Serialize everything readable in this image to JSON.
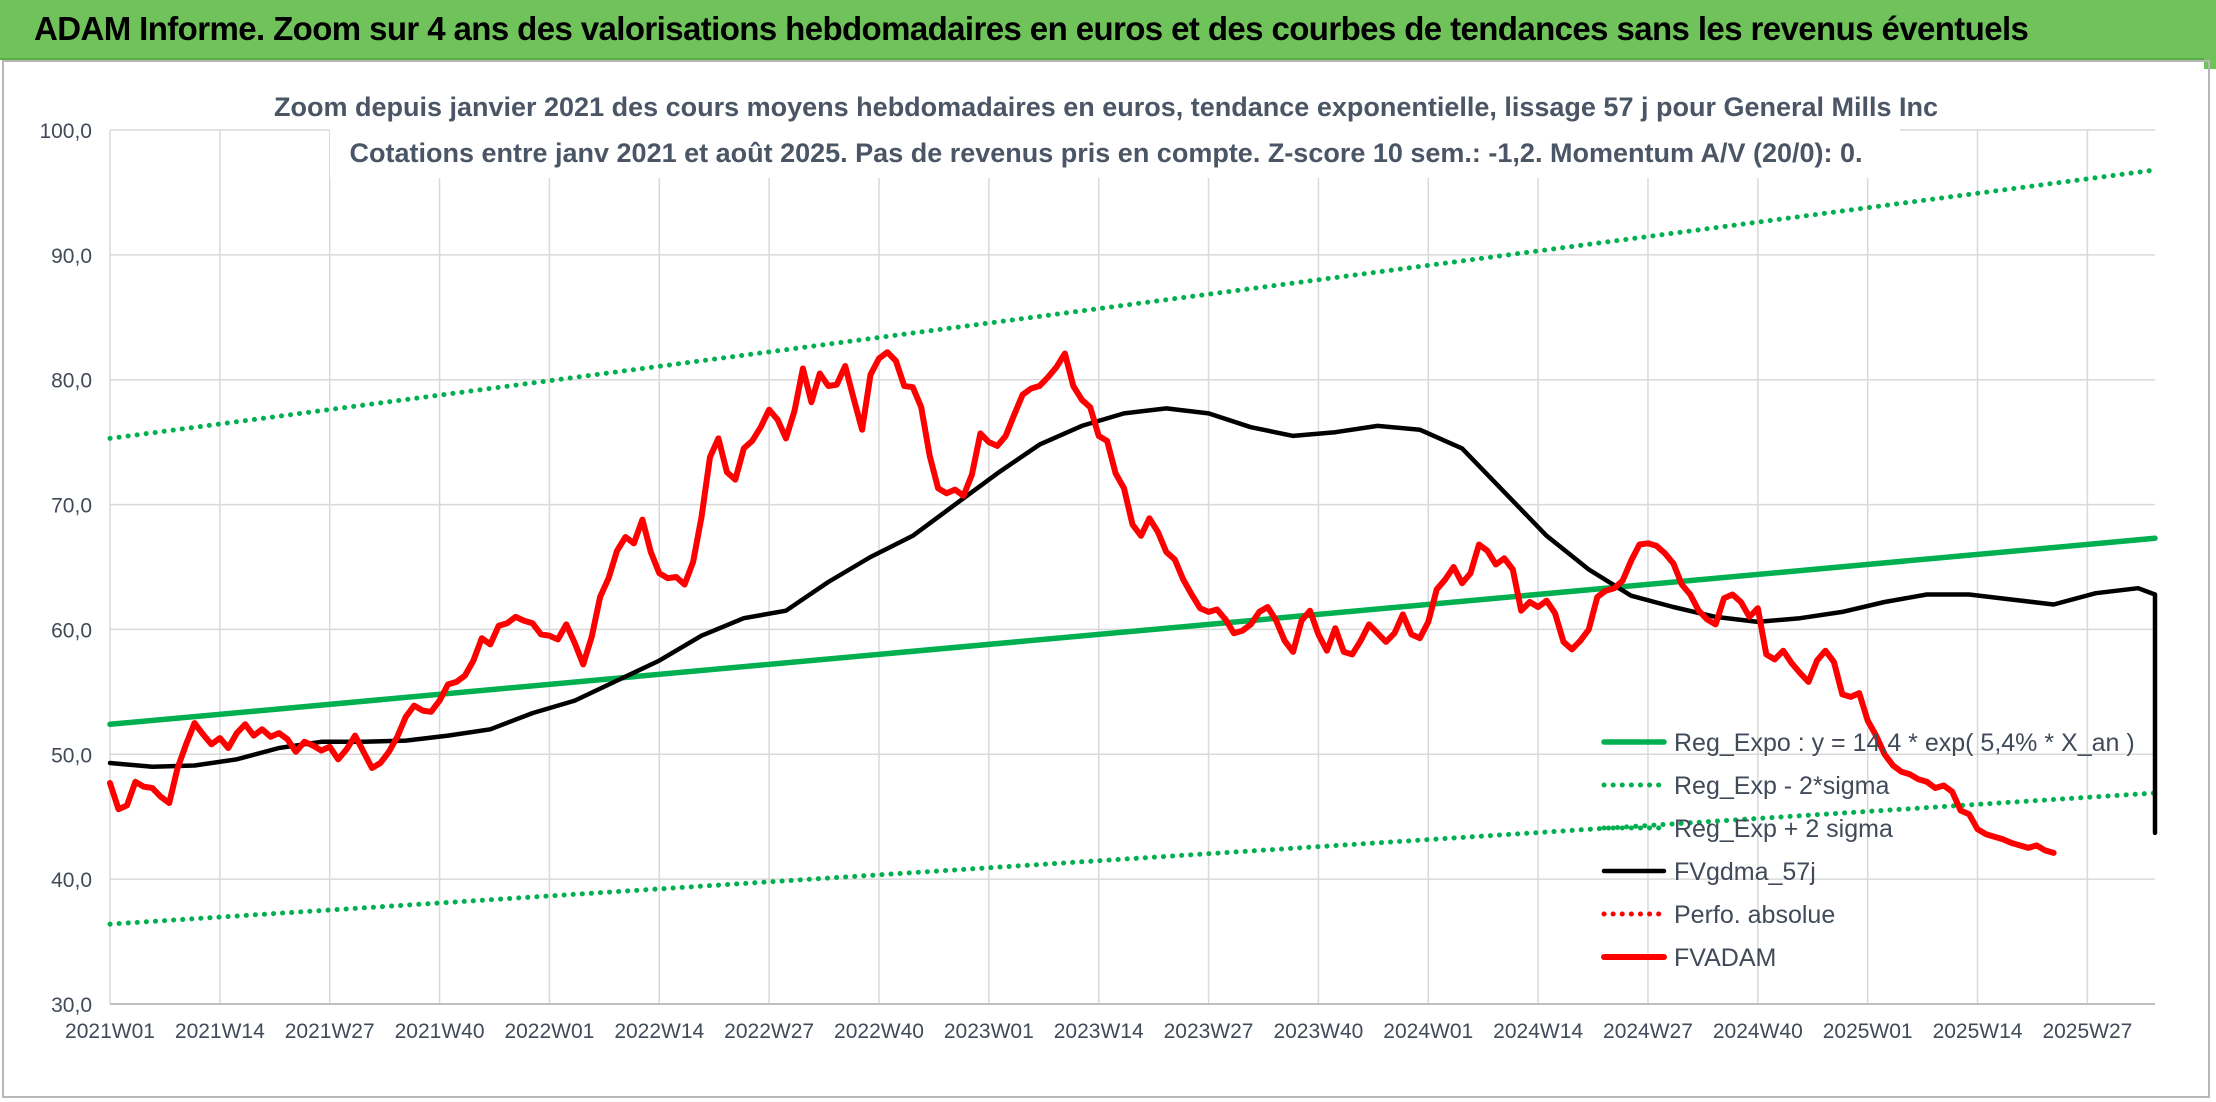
{
  "banner": {
    "title": "ADAM Informe. Zoom sur 4 ans des valorisations hebdomadaires en euros et des courbes de tendances sans les revenus éventuels"
  },
  "colors": {
    "banner": "#6fc35a",
    "regression": "#00b050",
    "fvadam": "#ff0000",
    "fvgdma": "#000000",
    "grid": "#d9d9d9",
    "text": "#404a58"
  },
  "chart_data": {
    "type": "line",
    "title": "Zoom depuis janvier 2021 des cours moyens hebdomadaires en euros, tendance exponentielle, lissage 57 j pour General Mills Inc",
    "subtitle": "Cotations entre janv 2021 et août 2025. Pas de revenus pris en compte. Z-score 10 sem.: -1,2. Momentum A/V (20/0): 0.",
    "ylim": [
      30,
      100
    ],
    "yticks": [
      "30,0",
      "40,0",
      "50,0",
      "60,0",
      "70,0",
      "80,0",
      "90,0",
      "100,0"
    ],
    "xticks": [
      "2021W01",
      "2021W14",
      "2021W27",
      "2021W40",
      "2022W01",
      "2022W14",
      "2022W27",
      "2022W40",
      "2023W01",
      "2023W14",
      "2023W27",
      "2023W40",
      "2024W01",
      "2024W14",
      "2024W27",
      "2024W40",
      "2025W01",
      "2025W14",
      "2025W27"
    ],
    "n_weeks": 243,
    "grid": true,
    "legend_position": "bottom-right",
    "series": [
      {
        "name": "Reg_Expo : y = 14,4 * exp( 5,4% *  X_an )",
        "style": "solid-thick",
        "color": "#00b050",
        "points": [
          [
            0,
            52.4
          ],
          [
            242,
            67.3
          ]
        ]
      },
      {
        "name": "Reg_Exp - 2*sigma",
        "style": "dotted",
        "color": "#00b050",
        "points": [
          [
            0,
            36.4
          ],
          [
            242,
            46.9
          ]
        ]
      },
      {
        "name": "Reg_Exp + 2 sigma",
        "style": "dotted",
        "color": "#00b050",
        "points": [
          [
            0,
            75.3
          ],
          [
            242,
            96.8
          ]
        ]
      },
      {
        "name": "FVgdma_57j",
        "style": "solid",
        "color": "#000000",
        "points": [
          [
            0,
            49.3
          ],
          [
            5,
            49.0
          ],
          [
            10,
            49.1
          ],
          [
            15,
            49.6
          ],
          [
            20,
            50.5
          ],
          [
            25,
            51.0
          ],
          [
            30,
            51.0
          ],
          [
            35,
            51.1
          ],
          [
            40,
            51.5
          ],
          [
            45,
            52.0
          ],
          [
            50,
            53.3
          ],
          [
            55,
            54.3
          ],
          [
            60,
            55.9
          ],
          [
            65,
            57.5
          ],
          [
            70,
            59.5
          ],
          [
            75,
            60.9
          ],
          [
            80,
            61.5
          ],
          [
            85,
            63.8
          ],
          [
            90,
            65.8
          ],
          [
            95,
            67.5
          ],
          [
            100,
            70.0
          ],
          [
            105,
            72.5
          ],
          [
            110,
            74.8
          ],
          [
            115,
            76.3
          ],
          [
            120,
            77.3
          ],
          [
            125,
            77.7
          ],
          [
            130,
            77.3
          ],
          [
            135,
            76.2
          ],
          [
            140,
            75.5
          ],
          [
            145,
            75.8
          ],
          [
            150,
            76.3
          ],
          [
            155,
            76.0
          ],
          [
            160,
            74.5
          ],
          [
            165,
            71.0
          ],
          [
            170,
            67.5
          ],
          [
            175,
            64.8
          ],
          [
            180,
            62.7
          ],
          [
            185,
            61.8
          ],
          [
            190,
            61.0
          ],
          [
            195,
            60.6
          ],
          [
            200,
            60.9
          ],
          [
            205,
            61.4
          ],
          [
            210,
            62.2
          ],
          [
            215,
            62.8
          ],
          [
            220,
            62.8
          ],
          [
            225,
            62.4
          ],
          [
            230,
            62.0
          ],
          [
            235,
            62.9
          ],
          [
            240,
            63.3
          ],
          [
            245,
            62.8
          ],
          [
            250,
            61.2
          ],
          [
            255,
            59.5
          ],
          [
            260,
            57.5
          ],
          [
            265,
            55.5
          ],
          [
            270,
            52.3
          ],
          [
            275,
            49.5
          ],
          [
            280,
            47.5
          ],
          [
            285,
            46.0
          ],
          [
            290,
            45.0
          ],
          [
            295,
            44.3
          ],
          [
            302,
            43.7
          ]
        ]
      },
      {
        "name": "Perfo. absolue",
        "style": "dotted",
        "color": "#ff0000",
        "points": []
      },
      {
        "name": "FVADAM",
        "style": "solid-thick",
        "color": "#ff0000",
        "points": [
          [
            0,
            47.7
          ],
          [
            1,
            45.6
          ],
          [
            2,
            45.9
          ],
          [
            3,
            47.8
          ],
          [
            4,
            47.4
          ],
          [
            5,
            47.3
          ],
          [
            6,
            46.6
          ],
          [
            7,
            46.1
          ],
          [
            8,
            48.9
          ],
          [
            9,
            50.8
          ],
          [
            10,
            52.5
          ],
          [
            11,
            51.6
          ],
          [
            12,
            50.8
          ],
          [
            13,
            51.3
          ],
          [
            14,
            50.5
          ],
          [
            15,
            51.7
          ],
          [
            16,
            52.4
          ],
          [
            17,
            51.5
          ],
          [
            18,
            52.0
          ],
          [
            19,
            51.4
          ],
          [
            20,
            51.7
          ],
          [
            21,
            51.2
          ],
          [
            22,
            50.2
          ],
          [
            23,
            51.0
          ],
          [
            24,
            50.7
          ],
          [
            25,
            50.3
          ],
          [
            26,
            50.6
          ],
          [
            27,
            49.6
          ],
          [
            28,
            50.4
          ],
          [
            29,
            51.5
          ],
          [
            30,
            50.2
          ],
          [
            31,
            48.9
          ],
          [
            32,
            49.3
          ],
          [
            33,
            50.2
          ],
          [
            34,
            51.4
          ],
          [
            35,
            53.0
          ],
          [
            36,
            53.9
          ],
          [
            37,
            53.5
          ],
          [
            38,
            53.4
          ],
          [
            39,
            54.3
          ],
          [
            40,
            55.6
          ],
          [
            41,
            55.8
          ],
          [
            42,
            56.3
          ],
          [
            43,
            57.5
          ],
          [
            44,
            59.3
          ],
          [
            45,
            58.8
          ],
          [
            46,
            60.3
          ],
          [
            47,
            60.5
          ],
          [
            48,
            61.0
          ],
          [
            49,
            60.7
          ],
          [
            50,
            60.5
          ],
          [
            51,
            59.6
          ],
          [
            52,
            59.5
          ],
          [
            53,
            59.2
          ],
          [
            54,
            60.4
          ],
          [
            55,
            58.9
          ],
          [
            56,
            57.2
          ],
          [
            57,
            59.4
          ],
          [
            58,
            62.6
          ],
          [
            59,
            64.1
          ],
          [
            60,
            66.3
          ],
          [
            61,
            67.4
          ],
          [
            62,
            66.9
          ],
          [
            63,
            68.8
          ],
          [
            64,
            66.2
          ],
          [
            65,
            64.5
          ],
          [
            66,
            64.1
          ],
          [
            67,
            64.2
          ],
          [
            68,
            63.6
          ],
          [
            69,
            65.4
          ],
          [
            70,
            69.0
          ],
          [
            71,
            73.8
          ],
          [
            72,
            75.3
          ],
          [
            73,
            72.6
          ],
          [
            74,
            72.0
          ],
          [
            75,
            74.5
          ],
          [
            76,
            75.1
          ],
          [
            77,
            76.2
          ],
          [
            78,
            77.6
          ],
          [
            79,
            76.8
          ],
          [
            80,
            75.3
          ],
          [
            81,
            77.5
          ],
          [
            82,
            80.9
          ],
          [
            83,
            78.2
          ],
          [
            84,
            80.5
          ],
          [
            85,
            79.5
          ],
          [
            86,
            79.6
          ],
          [
            87,
            81.1
          ],
          [
            88,
            78.5
          ],
          [
            89,
            76.0
          ],
          [
            90,
            80.4
          ],
          [
            91,
            81.7
          ],
          [
            92,
            82.2
          ],
          [
            93,
            81.5
          ],
          [
            94,
            79.5
          ],
          [
            95,
            79.4
          ],
          [
            96,
            77.8
          ],
          [
            97,
            73.9
          ],
          [
            98,
            71.3
          ],
          [
            99,
            70.9
          ],
          [
            100,
            71.2
          ],
          [
            101,
            70.7
          ],
          [
            102,
            72.4
          ],
          [
            103,
            75.7
          ],
          [
            104,
            75.0
          ],
          [
            105,
            74.7
          ],
          [
            106,
            75.5
          ],
          [
            107,
            77.2
          ],
          [
            108,
            78.8
          ],
          [
            109,
            79.3
          ],
          [
            110,
            79.5
          ],
          [
            111,
            80.2
          ],
          [
            112,
            81.0
          ],
          [
            113,
            82.1
          ],
          [
            114,
            79.5
          ],
          [
            115,
            78.4
          ],
          [
            116,
            77.8
          ],
          [
            117,
            75.5
          ],
          [
            118,
            75.1
          ],
          [
            119,
            72.5
          ],
          [
            120,
            71.3
          ],
          [
            121,
            68.4
          ],
          [
            122,
            67.5
          ],
          [
            123,
            68.9
          ],
          [
            124,
            67.8
          ],
          [
            125,
            66.2
          ],
          [
            126,
            65.6
          ],
          [
            127,
            64.0
          ],
          [
            128,
            62.8
          ],
          [
            129,
            61.7
          ],
          [
            130,
            61.4
          ],
          [
            131,
            61.6
          ],
          [
            132,
            60.8
          ],
          [
            133,
            59.7
          ],
          [
            134,
            59.9
          ],
          [
            135,
            60.4
          ],
          [
            136,
            61.4
          ],
          [
            137,
            61.8
          ],
          [
            138,
            60.7
          ],
          [
            139,
            59.1
          ],
          [
            140,
            58.2
          ],
          [
            141,
            60.7
          ],
          [
            142,
            61.5
          ],
          [
            143,
            59.6
          ],
          [
            144,
            58.3
          ],
          [
            145,
            60.1
          ],
          [
            146,
            58.2
          ],
          [
            147,
            58.0
          ],
          [
            148,
            59.1
          ],
          [
            149,
            60.4
          ],
          [
            150,
            59.7
          ],
          [
            151,
            59.0
          ],
          [
            152,
            59.7
          ],
          [
            153,
            61.2
          ],
          [
            154,
            59.6
          ],
          [
            155,
            59.3
          ],
          [
            156,
            60.6
          ],
          [
            157,
            63.2
          ],
          [
            158,
            64.0
          ],
          [
            159,
            65.0
          ],
          [
            160,
            63.7
          ],
          [
            161,
            64.5
          ],
          [
            162,
            66.8
          ],
          [
            163,
            66.3
          ],
          [
            164,
            65.2
          ],
          [
            165,
            65.7
          ],
          [
            166,
            64.8
          ],
          [
            167,
            61.5
          ],
          [
            168,
            62.2
          ],
          [
            169,
            61.8
          ],
          [
            170,
            62.3
          ],
          [
            171,
            61.3
          ],
          [
            172,
            59.0
          ],
          [
            173,
            58.4
          ],
          [
            174,
            59.1
          ],
          [
            175,
            60.0
          ],
          [
            176,
            62.6
          ],
          [
            177,
            63.1
          ],
          [
            178,
            63.3
          ],
          [
            179,
            63.9
          ],
          [
            180,
            65.5
          ],
          [
            181,
            66.8
          ],
          [
            182,
            66.9
          ],
          [
            183,
            66.7
          ],
          [
            184,
            66.1
          ],
          [
            185,
            65.3
          ],
          [
            186,
            63.6
          ],
          [
            187,
            62.8
          ],
          [
            188,
            61.5
          ],
          [
            189,
            60.8
          ],
          [
            190,
            60.4
          ],
          [
            191,
            62.5
          ],
          [
            192,
            62.8
          ],
          [
            193,
            62.2
          ],
          [
            194,
            61.0
          ],
          [
            195,
            61.7
          ],
          [
            196,
            58.0
          ],
          [
            197,
            57.6
          ],
          [
            198,
            58.3
          ],
          [
            199,
            57.3
          ],
          [
            200,
            56.5
          ],
          [
            201,
            55.8
          ],
          [
            202,
            57.5
          ],
          [
            203,
            58.3
          ],
          [
            204,
            57.4
          ],
          [
            205,
            54.8
          ],
          [
            206,
            54.6
          ],
          [
            207,
            54.9
          ],
          [
            208,
            52.7
          ],
          [
            209,
            51.5
          ],
          [
            210,
            50.0
          ],
          [
            211,
            49.1
          ],
          [
            212,
            48.6
          ],
          [
            213,
            48.4
          ],
          [
            214,
            48.0
          ],
          [
            215,
            47.8
          ],
          [
            216,
            47.3
          ],
          [
            217,
            47.5
          ],
          [
            218,
            47.0
          ],
          [
            219,
            45.5
          ],
          [
            220,
            45.2
          ],
          [
            221,
            44.0
          ],
          [
            222,
            43.6
          ],
          [
            223,
            43.4
          ],
          [
            224,
            43.2
          ],
          [
            225,
            42.9
          ],
          [
            226,
            42.7
          ],
          [
            227,
            42.5
          ],
          [
            228,
            42.7
          ],
          [
            229,
            42.3
          ],
          [
            230,
            42.1
          ]
        ]
      }
    ]
  }
}
